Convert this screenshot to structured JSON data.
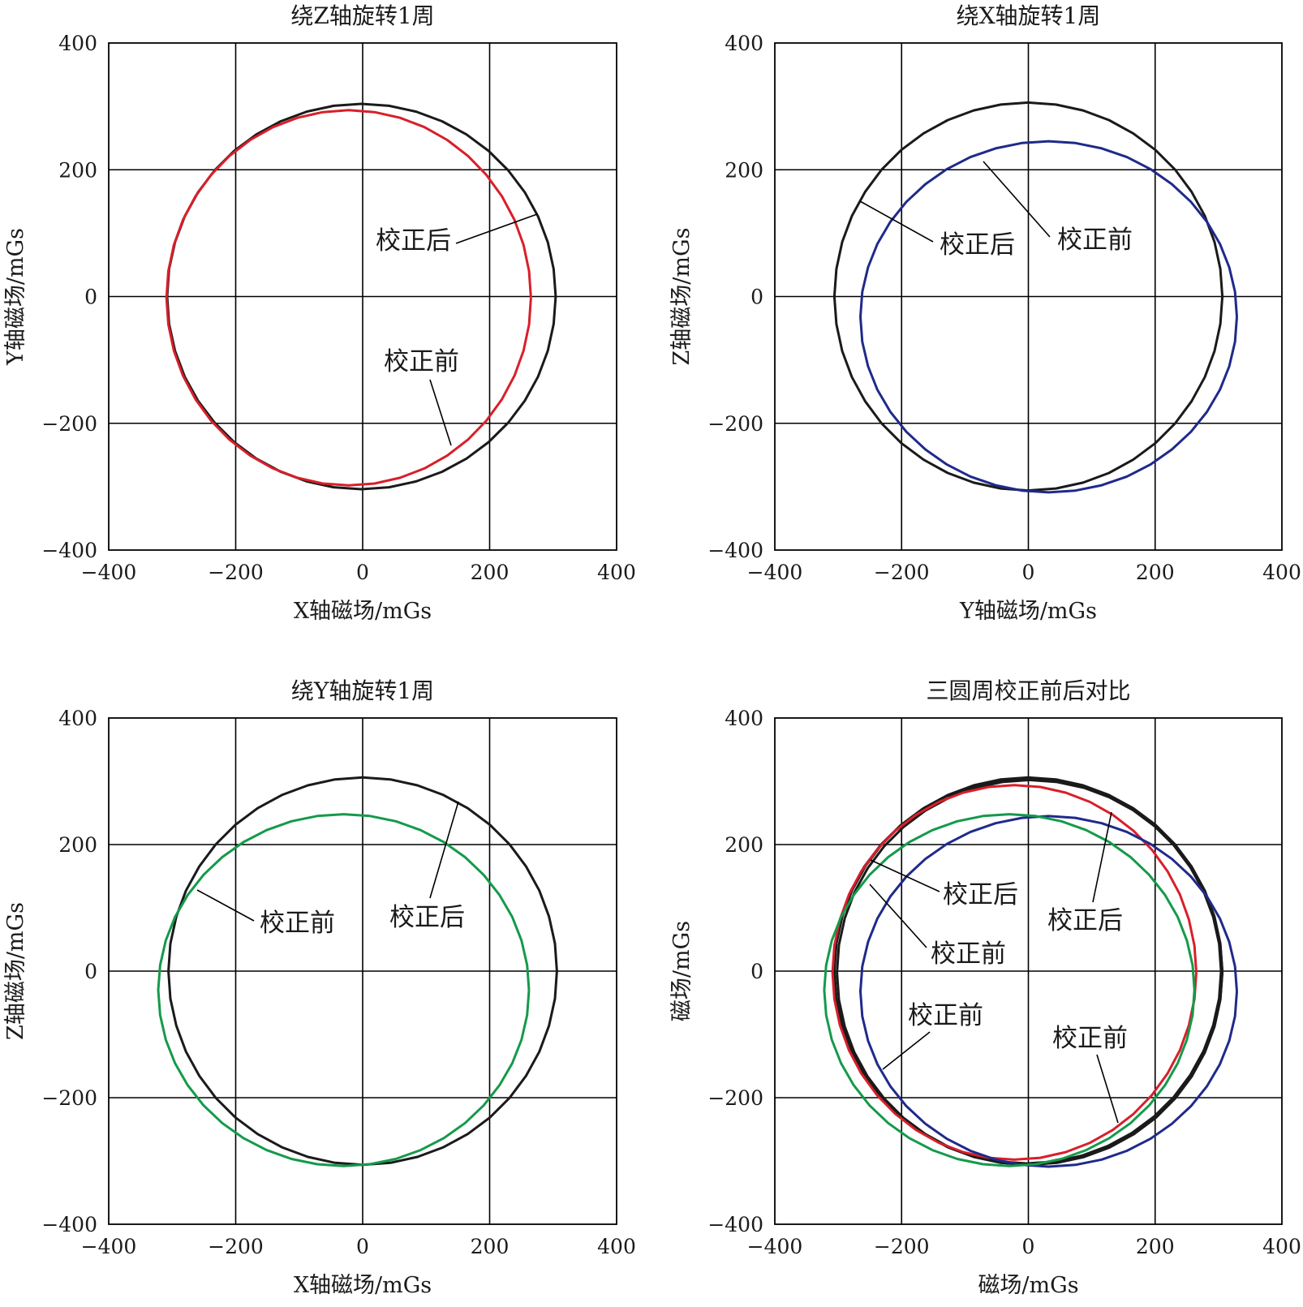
{
  "colors": {
    "after": "#1a1a1a",
    "before_z": "#d81f2a",
    "before_x": "#1f2a8a",
    "before_y": "#149a4a"
  },
  "chart_data": [
    {
      "type": "line",
      "title": "绕Z轴旋转1周",
      "xlabel": "X轴磁场/mGs",
      "ylabel": "Y轴磁场/mGs",
      "xlim": [
        -400,
        400
      ],
      "ylim": [
        -400,
        400
      ],
      "xticks": [
        "−400",
        "−200",
        "0",
        "200",
        "400"
      ],
      "yticks": [
        "400",
        "200",
        "0",
        "−200",
        "−400"
      ],
      "grid": true,
      "series": [
        {
          "key": "after",
          "color_key": "after",
          "cx": -2,
          "cy": 0,
          "rx": 306,
          "ry": 304
        },
        {
          "key": "before",
          "color_key": "before_z",
          "cx": -22,
          "cy": -2,
          "rx": 287,
          "ry": 296
        }
      ],
      "annotations": [
        {
          "text": "校正后",
          "target": "after"
        },
        {
          "text": "校正前",
          "target": "before"
        }
      ]
    },
    {
      "type": "line",
      "title": "绕X轴旋转1周",
      "xlabel": "Y轴磁场/mGs",
      "ylabel": "Z轴磁场/mGs",
      "xlim": [
        -400,
        400
      ],
      "ylim": [
        -400,
        400
      ],
      "xticks": [
        "−400",
        "−200",
        "0",
        "200",
        "400"
      ],
      "yticks": [
        "400",
        "200",
        "0",
        "−200",
        "−400"
      ],
      "grid": true,
      "series": [
        {
          "key": "after",
          "color_key": "after",
          "cx": 0,
          "cy": 0,
          "rx": 306,
          "ry": 306
        },
        {
          "key": "before",
          "color_key": "before_x",
          "cx": 32,
          "cy": -32,
          "rx": 297,
          "ry": 277
        }
      ],
      "annotations": [
        {
          "text": "校正后",
          "target": "after"
        },
        {
          "text": "校正前",
          "target": "before"
        }
      ]
    },
    {
      "type": "line",
      "title": "绕Y轴旋转1周",
      "xlabel": "X轴磁场/mGs",
      "ylabel": "Z轴磁场/mGs",
      "xlim": [
        -400,
        400
      ],
      "ylim": [
        -400,
        400
      ],
      "xticks": [
        "−400",
        "−200",
        "0",
        "200",
        "400"
      ],
      "yticks": [
        "400",
        "200",
        "0",
        "−200",
        "−400"
      ],
      "grid": true,
      "series": [
        {
          "key": "after",
          "color_key": "after",
          "cx": 0,
          "cy": 0,
          "rx": 306,
          "ry": 306
        },
        {
          "key": "before",
          "color_key": "before_y",
          "cx": -30,
          "cy": -30,
          "rx": 292,
          "ry": 278
        }
      ],
      "annotations": [
        {
          "text": "校正前",
          "target": "before"
        },
        {
          "text": "校正后",
          "target": "after"
        }
      ]
    },
    {
      "type": "line",
      "title": "三圆周校正前后对比",
      "xlabel": "磁场/mGs",
      "ylabel": "磁场/mGs",
      "xlim": [
        -400,
        400
      ],
      "ylim": [
        -400,
        400
      ],
      "xticks": [
        "−400",
        "−200",
        "0",
        "200",
        "400"
      ],
      "yticks": [
        "400",
        "200",
        "0",
        "−200",
        "−400"
      ],
      "grid": true,
      "series": [
        {
          "key": "after_1",
          "color_key": "after",
          "cx": -2,
          "cy": 0,
          "rx": 306,
          "ry": 304
        },
        {
          "key": "after_2",
          "color_key": "after",
          "cx": 0,
          "cy": 0,
          "rx": 306,
          "ry": 306
        },
        {
          "key": "after_3",
          "color_key": "after",
          "cx": 2,
          "cy": -2,
          "rx": 304,
          "ry": 304
        },
        {
          "key": "before_z",
          "color_key": "before_z",
          "cx": -22,
          "cy": -2,
          "rx": 287,
          "ry": 296
        },
        {
          "key": "before_x",
          "color_key": "before_x",
          "cx": 32,
          "cy": -32,
          "rx": 297,
          "ry": 277
        },
        {
          "key": "before_y",
          "color_key": "before_y",
          "cx": -30,
          "cy": -30,
          "rx": 292,
          "ry": 278
        }
      ],
      "annotations": [
        {
          "text": "校正后",
          "target": "after_1"
        },
        {
          "text": "校正前",
          "target": "before_y"
        },
        {
          "text": "校正前",
          "target": "before_x"
        },
        {
          "text": "校正后",
          "target": "after_2"
        },
        {
          "text": "校正前",
          "target": "before_z"
        }
      ]
    }
  ]
}
